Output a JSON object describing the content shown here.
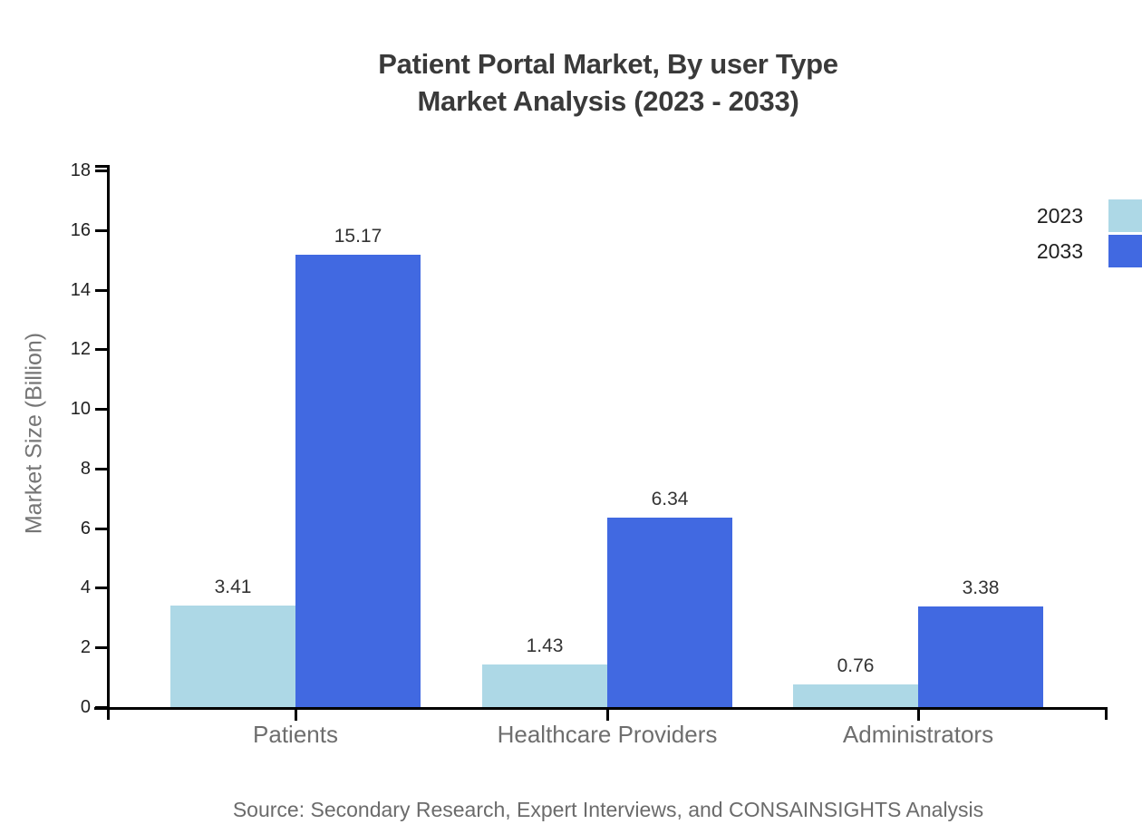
{
  "header": {
    "title_line1": "Patient Portal Market, By user Type",
    "title_line2": "Market Analysis (2023 - 2033)"
  },
  "chart_data": {
    "type": "bar",
    "title": "Patient Portal Market, By user Type Market Analysis (2023 - 2033)",
    "categories": [
      "Patients",
      "Healthcare Providers",
      "Administrators"
    ],
    "series": [
      {
        "name": "2023",
        "color": "#ADD8E6",
        "values": [
          3.41,
          1.43,
          0.76
        ]
      },
      {
        "name": "2033",
        "color": "#4169E1",
        "values": [
          15.17,
          6.34,
          3.38
        ]
      }
    ],
    "value_labels": [
      [
        "3.41",
        "1.43",
        "0.76"
      ],
      [
        "15.17",
        "6.34",
        "3.38"
      ]
    ],
    "xlabel": "",
    "ylabel": "Market Size (Billion)",
    "ylim": [
      0,
      18
    ],
    "ytick_step": 2,
    "ytick_labels": [
      "0",
      "2",
      "4",
      "6",
      "8",
      "10",
      "12",
      "14",
      "16",
      "18"
    ],
    "grid": false,
    "legend_position": "right-top",
    "legend_entries": [
      "2023",
      "2033"
    ]
  },
  "footer": {
    "source": "Source: Secondary Research, Expert Interviews, and CONSAINSIGHTS Analysis"
  },
  "colors": {
    "series_2023": "#ADD8E6",
    "series_2033": "#4169E1",
    "axis": "#000000",
    "title_text": "#3A3A3A",
    "tick_text": "#1F1F1F",
    "value_label_text": "#333333",
    "muted_text": "#6E6E6E"
  }
}
